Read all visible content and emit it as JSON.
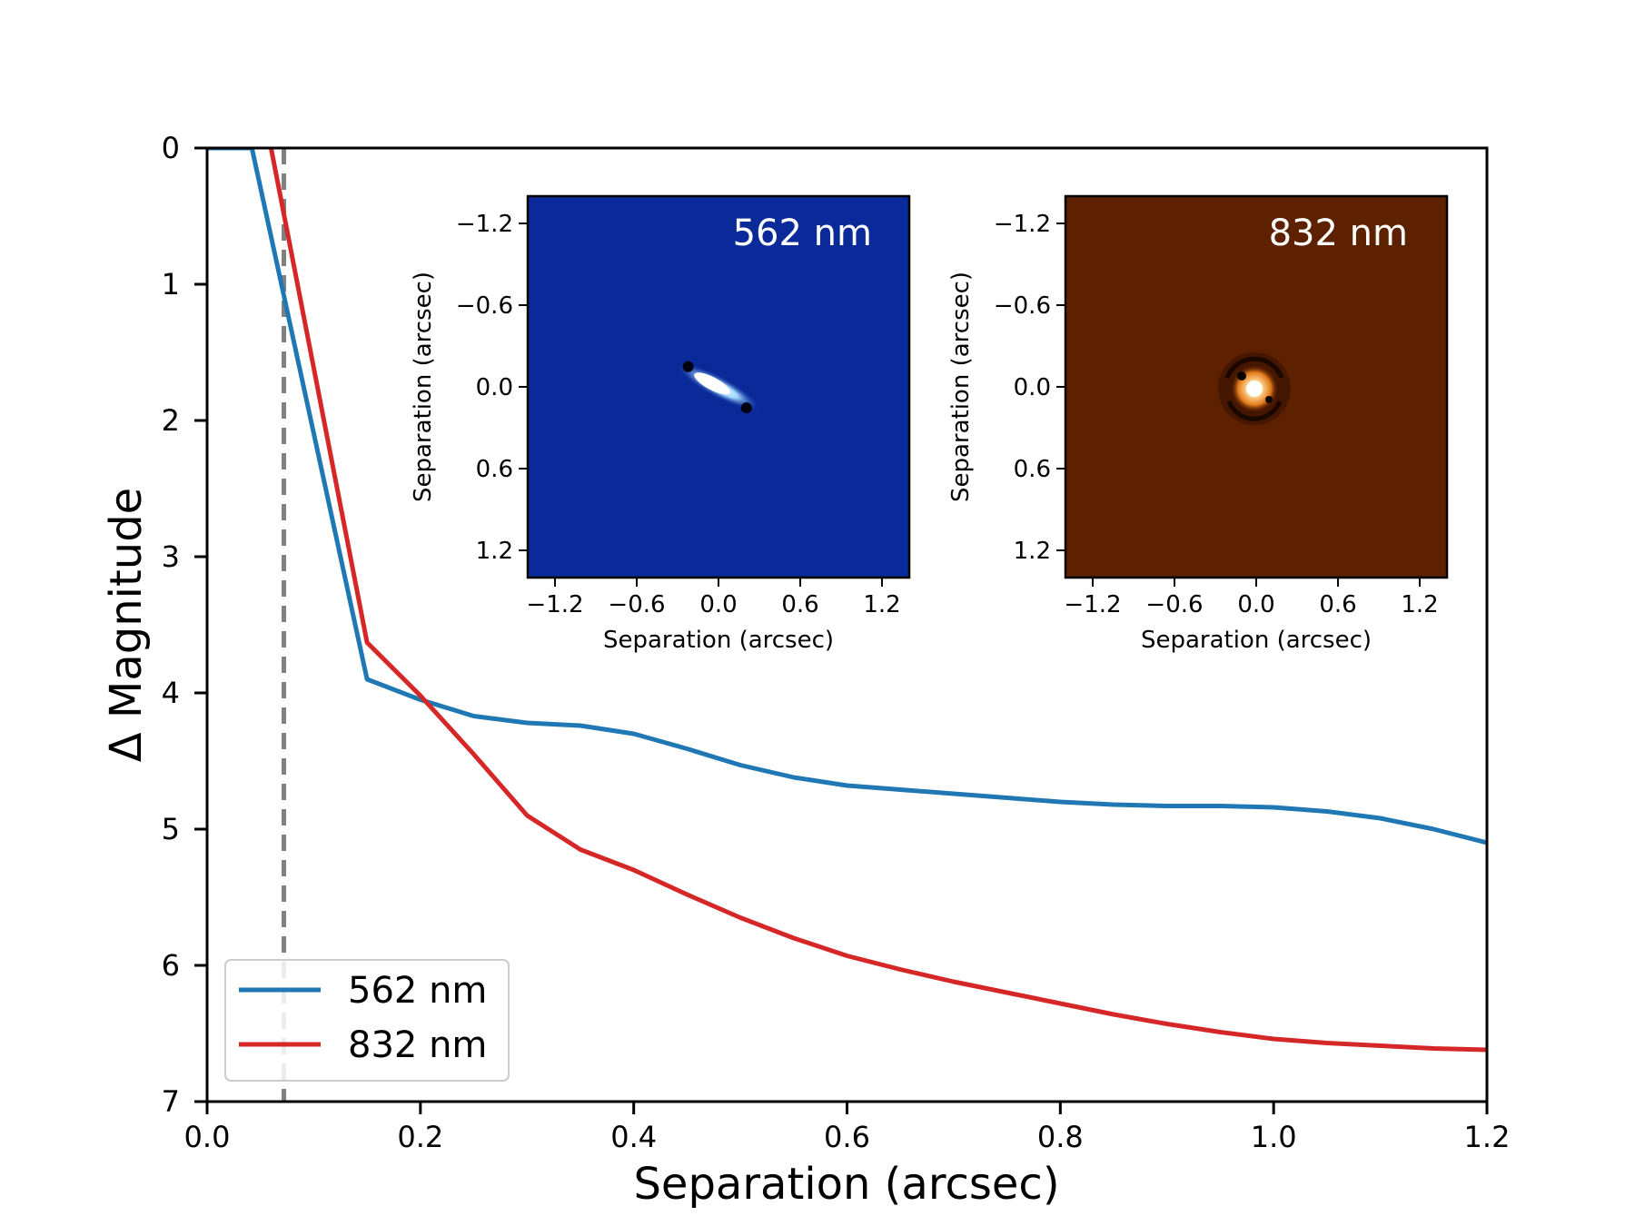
{
  "chart_data": {
    "type": "line",
    "xlabel": "Separation (arcsec)",
    "ylabel": "Δ Magnitude",
    "xlim": [
      0.0,
      1.2
    ],
    "ylim": [
      7,
      0
    ],
    "y_inverted": true,
    "xticks": [
      "0.0",
      "0.2",
      "0.4",
      "0.6",
      "0.8",
      "1.0",
      "1.2"
    ],
    "yticks": [
      "0",
      "1",
      "2",
      "3",
      "4",
      "5",
      "6",
      "7"
    ],
    "grid": false,
    "legend_position": "lower-left",
    "vertical_reference_line": {
      "x": 0.072,
      "style": "dashed",
      "color": "#808080"
    },
    "series": [
      {
        "name": "562 nm",
        "color": "#1f77b4",
        "x": [
          0.0,
          0.042,
          0.15,
          0.2,
          0.25,
          0.3,
          0.35,
          0.4,
          0.45,
          0.5,
          0.55,
          0.6,
          0.65,
          0.7,
          0.75,
          0.8,
          0.85,
          0.9,
          0.95,
          1.0,
          1.05,
          1.1,
          1.15,
          1.2
        ],
        "y": [
          0.0,
          0.0,
          3.9,
          4.05,
          4.17,
          4.22,
          4.24,
          4.3,
          4.41,
          4.53,
          4.62,
          4.68,
          4.71,
          4.74,
          4.77,
          4.8,
          4.82,
          4.83,
          4.83,
          4.84,
          4.87,
          4.92,
          5.0,
          5.1
        ]
      },
      {
        "name": "832 nm",
        "color": "#d62728",
        "x": [
          0.06,
          0.15,
          0.2,
          0.25,
          0.3,
          0.35,
          0.4,
          0.45,
          0.5,
          0.55,
          0.6,
          0.65,
          0.7,
          0.75,
          0.8,
          0.85,
          0.9,
          0.95,
          1.0,
          1.05,
          1.1,
          1.15,
          1.2
        ],
        "y": [
          0.0,
          3.63,
          4.02,
          4.45,
          4.9,
          5.15,
          5.3,
          5.48,
          5.65,
          5.8,
          5.93,
          6.03,
          6.12,
          6.2,
          6.28,
          6.36,
          6.43,
          6.49,
          6.54,
          6.57,
          6.59,
          6.61,
          6.62
        ]
      }
    ],
    "insets": [
      {
        "label": "562 nm",
        "background": "#0a2a9a",
        "xlabel": "Separation (arcsec)",
        "ylabel": "Separation (arcsec)",
        "xticks": [
          "−1.2",
          "−0.6",
          "0.0",
          "0.6",
          "1.2"
        ],
        "yticks": [
          "−1.2",
          "−0.6",
          "0.0",
          "0.6",
          "1.2"
        ],
        "xlim": [
          -1.4,
          1.4
        ],
        "ylim": [
          -1.4,
          1.4
        ]
      },
      {
        "label": "832 nm",
        "background": "#5e2100",
        "xlabel": "Separation (arcsec)",
        "ylabel": "Separation (arcsec)",
        "xticks": [
          "−1.2",
          "−0.6",
          "0.0",
          "0.6",
          "1.2"
        ],
        "yticks": [
          "−1.2",
          "−0.6",
          "0.0",
          "0.6",
          "1.2"
        ],
        "xlim": [
          -1.4,
          1.4
        ],
        "ylim": [
          -1.4,
          1.4
        ]
      }
    ]
  }
}
